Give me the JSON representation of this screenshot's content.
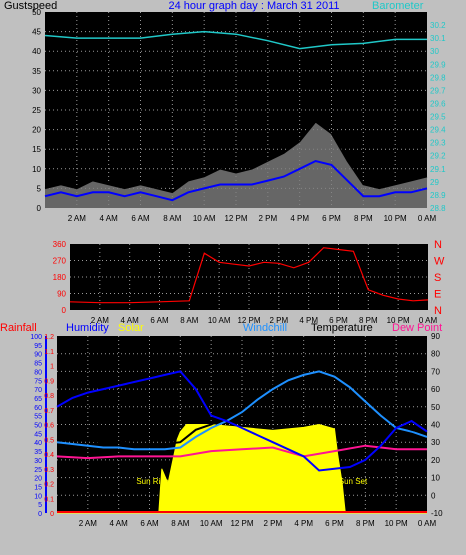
{
  "colors": {
    "background": "#c0c0c0",
    "plot_bg": "#000000",
    "grid": "#9a9a9a",
    "wind": "#0000ff",
    "gust": "#000000",
    "gust_fill": "#808080",
    "barometer": "#20c8c8",
    "direction": "#ff0000",
    "rainfall": "#ff0000",
    "humidity": "#0000ff",
    "solar": "#ffff00",
    "windchill": "#1e90ff",
    "temperature": "#000000",
    "dew_point": "#ff1493",
    "title": "#0000ff"
  },
  "chart_data": [
    {
      "type": "line",
      "title": "24 hour graph day : March 31 2011",
      "ylabel": "Gustspeed",
      "ylabel_right": "Barometer",
      "ylim": [
        0,
        50
      ],
      "ylim_right": [
        28.8,
        30.3
      ],
      "yticks": [
        "0",
        "5",
        "10",
        "15",
        "20",
        "25",
        "30",
        "35",
        "40",
        "45",
        "50"
      ],
      "yticks_right": [
        "28.8",
        "28.9",
        "29",
        "29.1",
        "29.2",
        "29.3",
        "29.4",
        "29.5",
        "29.6",
        "29.7",
        "29.8",
        "29.9",
        "30",
        "30.1",
        "30.2"
      ],
      "x_tick_labels": [
        "2 AM",
        "4 AM",
        "6 AM",
        "8 AM",
        "10 AM",
        "12 PM",
        "2 PM",
        "4 PM",
        "6 PM",
        "8 PM",
        "10 PM",
        "0 AM"
      ],
      "grid": true,
      "series": [
        {
          "name": "Gustspeed",
          "x": [
            0,
            1,
            2,
            3,
            4,
            5,
            6,
            7,
            8,
            9,
            10,
            11,
            12,
            13,
            14,
            15,
            16,
            17,
            18,
            19,
            20,
            21,
            22,
            23,
            24
          ],
          "values": [
            5,
            6,
            5,
            7,
            6,
            5,
            6,
            5,
            4,
            7,
            8,
            10,
            9,
            10,
            12,
            14,
            17,
            22,
            19,
            12,
            6,
            5,
            6,
            7,
            8
          ]
        },
        {
          "name": "Wind",
          "x": [
            0,
            1,
            2,
            3,
            4,
            5,
            6,
            7,
            8,
            9,
            10,
            11,
            12,
            13,
            14,
            15,
            16,
            17,
            18,
            19,
            20,
            21,
            22,
            23,
            24
          ],
          "values": [
            3,
            4,
            3,
            4,
            4,
            3,
            4,
            3,
            2,
            4,
            5,
            6,
            6,
            6,
            7,
            8,
            10,
            12,
            11,
            7,
            3,
            3,
            4,
            4,
            5
          ]
        },
        {
          "name": "Barometer",
          "x": [
            0,
            2,
            4,
            6,
            8,
            10,
            12,
            14,
            16,
            18,
            20,
            22,
            24
          ],
          "values": [
            30.12,
            30.1,
            30.1,
            30.1,
            30.13,
            30.15,
            30.13,
            30.08,
            30.02,
            30.05,
            30.06,
            30.09,
            30.09
          ]
        }
      ]
    },
    {
      "type": "scatter",
      "ylabel_right": "N W S E N",
      "right_letters": [
        "N",
        "W",
        "S",
        "E",
        "N"
      ],
      "ylim": [
        0,
        360
      ],
      "yticks": [
        "0",
        "90",
        "180",
        "270",
        "360"
      ],
      "x_tick_labels": [
        "2 AM",
        "4 AM",
        "6 AM",
        "8 AM",
        "10 AM",
        "12 PM",
        "2 PM",
        "4 PM",
        "6 PM",
        "8 PM",
        "10 PM",
        "0 AM"
      ],
      "grid": true,
      "series": [
        {
          "name": "Direction",
          "x": [
            0,
            2,
            4,
            6,
            8,
            9,
            10,
            11,
            12,
            13,
            14,
            15,
            16,
            17,
            18,
            19,
            20,
            21,
            22,
            23,
            24
          ],
          "values": [
            45,
            40,
            40,
            45,
            50,
            310,
            260,
            250,
            240,
            260,
            255,
            230,
            260,
            340,
            330,
            320,
            110,
            80,
            60,
            50,
            55
          ]
        }
      ]
    },
    {
      "type": "line",
      "legend": [
        "Rainfall",
        "Humidity",
        "Solar",
        "Windchill",
        "Temperature",
        "Dew Point"
      ],
      "ylim_left_outer": [
        0,
        100
      ],
      "yticks_left_outer": [
        "0",
        "5",
        "10",
        "15",
        "20",
        "25",
        "30",
        "35",
        "40",
        "45",
        "50",
        "55",
        "60",
        "65",
        "70",
        "75",
        "80",
        "85",
        "90",
        "95",
        "100"
      ],
      "ylim_left_inner": [
        0,
        1.2
      ],
      "yticks_left_inner": [
        "0",
        "0.1",
        "0.2",
        "0.3",
        "0.4",
        "0.5",
        "0.6",
        "0.7",
        "0.8",
        "0.9",
        "1",
        "1.1",
        "1.2"
      ],
      "ylim_right": [
        -10,
        90
      ],
      "yticks_right": [
        "-10",
        "0",
        "10",
        "20",
        "30",
        "40",
        "50",
        "60",
        "70",
        "80",
        "90"
      ],
      "x_tick_labels": [
        "2 AM",
        "4 AM",
        "6 AM",
        "8 AM",
        "10 AM",
        "12 PM",
        "2 PM",
        "4 PM",
        "6 PM",
        "8 PM",
        "10 PM",
        "0 AM"
      ],
      "annotations": [
        "Sun Rise",
        "Sun Set"
      ],
      "grid": true,
      "series": [
        {
          "name": "Humidity",
          "x": [
            0,
            1,
            2,
            3,
            4,
            5,
            6,
            7,
            8,
            9,
            10,
            11,
            12,
            13,
            14,
            15,
            16,
            17,
            18,
            19,
            20,
            21,
            22,
            23,
            24
          ],
          "values": [
            60,
            65,
            68,
            70,
            72,
            74,
            76,
            78,
            80,
            70,
            55,
            52,
            48,
            44,
            40,
            36,
            32,
            24,
            25,
            26,
            30,
            38,
            48,
            52,
            46
          ]
        },
        {
          "name": "Temperature",
          "x": [
            0,
            1,
            2,
            3,
            4,
            5,
            6,
            7,
            8,
            9,
            10,
            11,
            12,
            13,
            14,
            15,
            16,
            17,
            18,
            19,
            20,
            21,
            22,
            23,
            24
          ],
          "values": [
            32,
            31,
            31,
            30,
            30,
            29,
            29,
            29,
            30,
            37,
            40,
            44,
            49,
            56,
            62,
            67,
            70,
            72,
            69,
            63,
            55,
            47,
            40,
            37,
            35
          ]
        },
        {
          "name": "Windchill",
          "x": [
            0,
            1,
            2,
            3,
            4,
            5,
            6,
            7,
            8,
            9,
            10,
            11,
            12,
            13,
            14,
            15,
            16,
            17,
            18,
            19,
            20,
            21,
            22,
            23,
            24
          ],
          "values": [
            30,
            29,
            28,
            27,
            27,
            26,
            26,
            26,
            27,
            33,
            38,
            42,
            47,
            54,
            60,
            65,
            68,
            70,
            67,
            61,
            53,
            45,
            38,
            36,
            33
          ]
        },
        {
          "name": "Dew Point",
          "x": [
            0,
            2,
            4,
            6,
            8,
            10,
            12,
            14,
            16,
            18,
            20,
            22,
            24
          ],
          "values": [
            22,
            21,
            22,
            22,
            22,
            25,
            26,
            27,
            22,
            25,
            28,
            26,
            26
          ]
        },
        {
          "name": "Solar",
          "x": [
            0,
            6.6,
            6.8,
            7.2,
            7.8,
            8,
            8.4,
            10,
            12,
            14,
            16,
            17,
            18,
            18.2,
            18.5,
            18.7,
            24
          ],
          "values": [
            0,
            0,
            0.3,
            0.2,
            0.5,
            0.55,
            0.6,
            0.6,
            0.58,
            0.56,
            0.58,
            0.6,
            0.57,
            0.4,
            0.2,
            0,
            0
          ]
        },
        {
          "name": "Rainfall",
          "x": [
            0,
            24
          ],
          "values": [
            0,
            0
          ]
        }
      ]
    }
  ]
}
